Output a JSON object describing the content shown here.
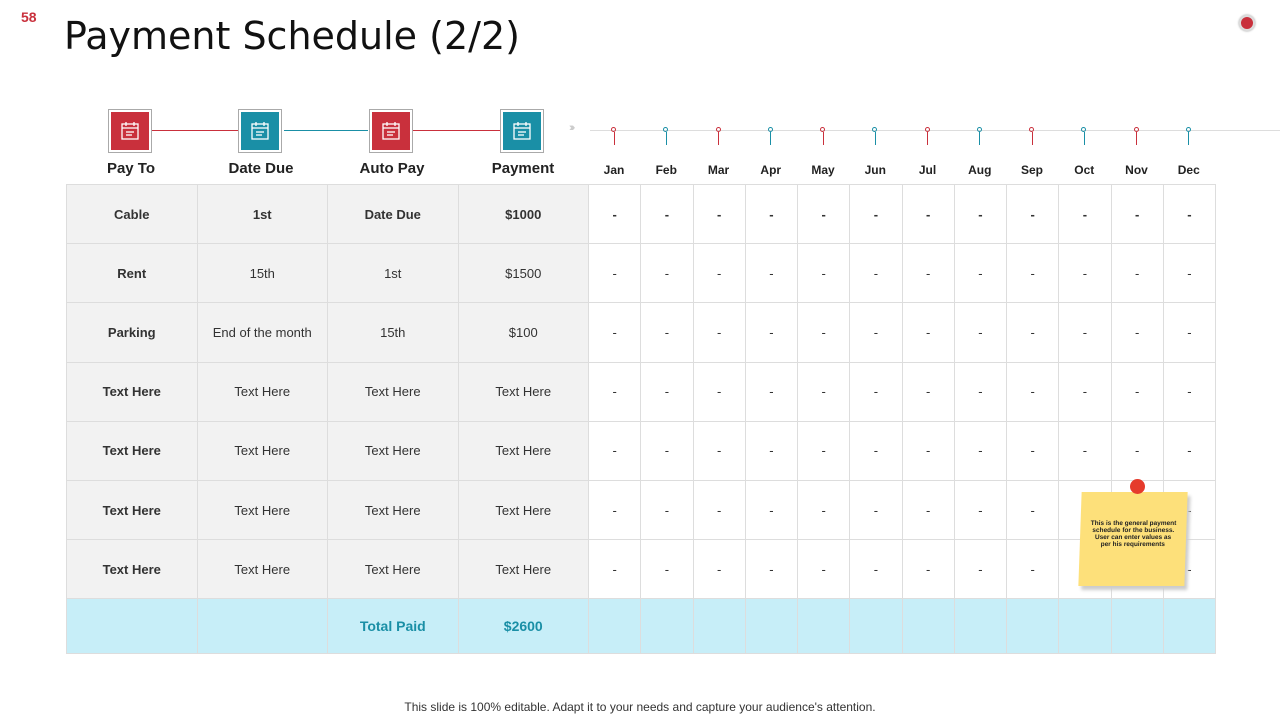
{
  "slide_number": "58",
  "title": "Payment Schedule (2/2)",
  "colors": {
    "red": "#c9303c",
    "teal": "#1a8fa6",
    "total_bg": "#c7eef8"
  },
  "headers": [
    {
      "label": "Pay To",
      "icon": "calendar-icon",
      "color": "#c9303c"
    },
    {
      "label": "Date Due",
      "icon": "calendar-card-icon",
      "color": "#1a8fa6"
    },
    {
      "label": "Auto Pay",
      "icon": "mobile-payment-icon",
      "color": "#c9303c"
    },
    {
      "label": "Payment",
      "icon": "cash-hand-icon",
      "color": "#1a8fa6"
    }
  ],
  "months": [
    "Jan",
    "Feb",
    "Mar",
    "Apr",
    "May",
    "Jun",
    "Jul",
    "Aug",
    "Sep",
    "Oct",
    "Nov",
    "Dec"
  ],
  "rows": [
    [
      "Cable",
      "1st",
      "Date Due",
      "$1000"
    ],
    [
      "Rent",
      "15th",
      "1st",
      "$1500"
    ],
    [
      "Parking",
      "End of the month",
      "15th",
      "$100"
    ],
    [
      "Text Here",
      "Text Here",
      "Text Here",
      "Text Here"
    ],
    [
      "Text Here",
      "Text Here",
      "Text Here",
      "Text Here"
    ],
    [
      "Text Here",
      "Text Here",
      "Text Here",
      "Text Here"
    ],
    [
      "Text Here",
      "Text Here",
      "Text Here",
      "Text Here"
    ]
  ],
  "month_placeholder": "-",
  "total": {
    "label": "Total Paid",
    "value": "$2600"
  },
  "note": "This is the general payment schedule for the business. User can enter values as per his requirements",
  "footer": "This slide is 100% editable. Adapt it to your needs and capture your audience's attention."
}
